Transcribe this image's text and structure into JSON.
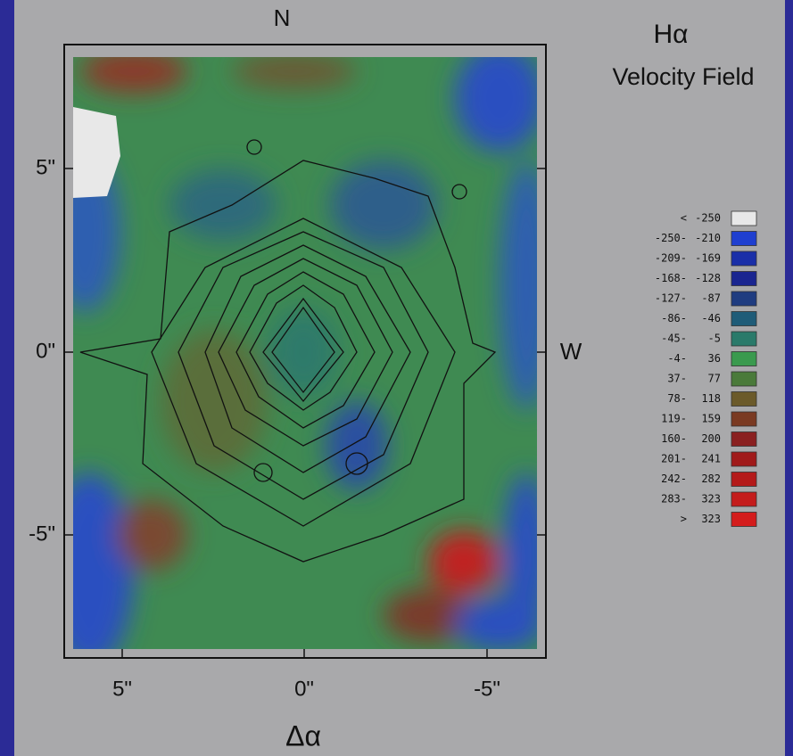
{
  "labels": {
    "north": "N",
    "west": "W",
    "x_axis": "Δα",
    "title_symbol": "Hα",
    "title": "Velocity Field"
  },
  "x_ticks": [
    "5\"",
    "0\"",
    "-5\""
  ],
  "y_ticks": [
    "5\"",
    "0\"",
    "-5\""
  ],
  "legend": {
    "rows": [
      [
        "<",
        "-250"
      ],
      [
        "-250-",
        "-210"
      ],
      [
        "-209-",
        "-169"
      ],
      [
        "-168-",
        "-128"
      ],
      [
        "-127-",
        "-87"
      ],
      [
        "-86-",
        "-46"
      ],
      [
        "-45-",
        "-5"
      ],
      [
        "-4-",
        "36"
      ],
      [
        "37-",
        "77"
      ],
      [
        "78-",
        "118"
      ],
      [
        "119-",
        "159"
      ],
      [
        "160-",
        "200"
      ],
      [
        "201-",
        "241"
      ],
      [
        "242-",
        "282"
      ],
      [
        "283-",
        "323"
      ],
      [
        ">",
        "323"
      ]
    ]
  }
}
